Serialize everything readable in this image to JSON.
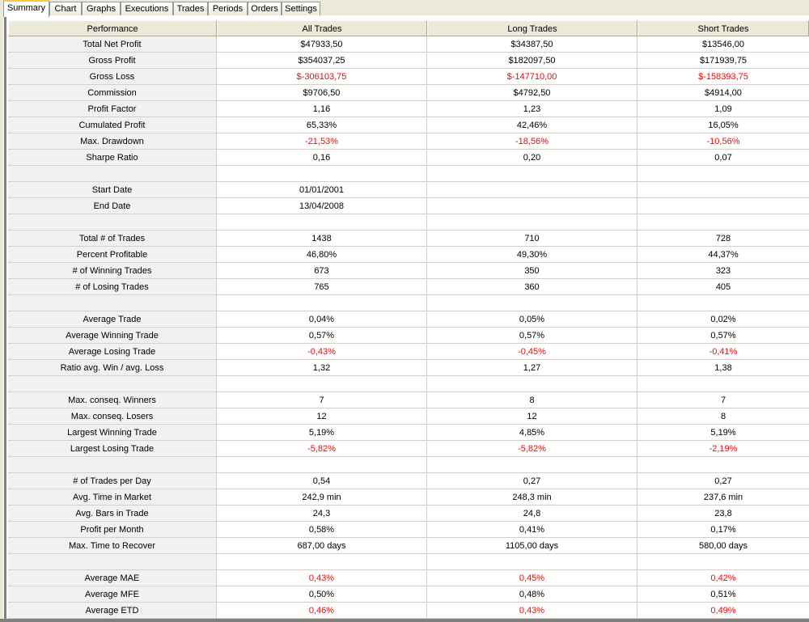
{
  "tabs": [
    "Summary",
    "Chart",
    "Graphs",
    "Executions",
    "Trades",
    "Periods",
    "Orders",
    "Settings"
  ],
  "active_tab": "Summary",
  "colors": {
    "negative": "#ff0000",
    "header_bg": "#ece9d8"
  },
  "table": {
    "headers": [
      "Performance",
      "All Trades",
      "Long Trades",
      "Short Trades"
    ],
    "rows": [
      {
        "label": "Total Net Profit",
        "values": [
          "$47933,50",
          "$34387,50",
          "$13546,00"
        ],
        "red": false
      },
      {
        "label": "Gross Profit",
        "values": [
          "$354037,25",
          "$182097,50",
          "$171939,75"
        ],
        "red": false
      },
      {
        "label": "Gross Loss",
        "values": [
          "$-306103,75",
          "$-147710,00",
          "$-158393,75"
        ],
        "red": true
      },
      {
        "label": "Commission",
        "values": [
          "$9706,50",
          "$4792,50",
          "$4914,00"
        ],
        "red": false
      },
      {
        "label": "Profit Factor",
        "values": [
          "1,16",
          "1,23",
          "1,09"
        ],
        "red": false
      },
      {
        "label": "Cumulated Profit",
        "values": [
          "65,33%",
          "42,46%",
          "16,05%"
        ],
        "red": false
      },
      {
        "label": "Max. Drawdown",
        "values": [
          "-21,53%",
          "-18,56%",
          "-10,56%"
        ],
        "red": true
      },
      {
        "label": "Sharpe Ratio",
        "values": [
          "0,16",
          "0,20",
          "0,07"
        ],
        "red": false
      },
      {
        "label": "",
        "values": [
          "",
          "",
          ""
        ],
        "red": false
      },
      {
        "label": "Start Date",
        "values": [
          "01/01/2001",
          "",
          ""
        ],
        "red": false
      },
      {
        "label": "End Date",
        "values": [
          "13/04/2008",
          "",
          ""
        ],
        "red": false
      },
      {
        "label": "",
        "values": [
          "",
          "",
          ""
        ],
        "red": false
      },
      {
        "label": "Total # of Trades",
        "values": [
          "1438",
          "710",
          "728"
        ],
        "red": false
      },
      {
        "label": "Percent Profitable",
        "values": [
          "46,80%",
          "49,30%",
          "44,37%"
        ],
        "red": false
      },
      {
        "label": "# of Winning Trades",
        "values": [
          "673",
          "350",
          "323"
        ],
        "red": false
      },
      {
        "label": "# of Losing Trades",
        "values": [
          "765",
          "360",
          "405"
        ],
        "red": false
      },
      {
        "label": "",
        "values": [
          "",
          "",
          ""
        ],
        "red": false
      },
      {
        "label": "Average Trade",
        "values": [
          "0,04%",
          "0,05%",
          "0,02%"
        ],
        "red": false
      },
      {
        "label": "Average Winning Trade",
        "values": [
          "0,57%",
          "0,57%",
          "0,57%"
        ],
        "red": false
      },
      {
        "label": "Average Losing Trade",
        "values": [
          "-0,43%",
          "-0,45%",
          "-0,41%"
        ],
        "red": true
      },
      {
        "label": "Ratio avg. Win / avg. Loss",
        "values": [
          "1,32",
          "1,27",
          "1,38"
        ],
        "red": false
      },
      {
        "label": "",
        "values": [
          "",
          "",
          ""
        ],
        "red": false
      },
      {
        "label": "Max. conseq. Winners",
        "values": [
          "7",
          "8",
          "7"
        ],
        "red": false
      },
      {
        "label": "Max. conseq. Losers",
        "values": [
          "12",
          "12",
          "8"
        ],
        "red": false
      },
      {
        "label": "Largest Winning Trade",
        "values": [
          "5,19%",
          "4,85%",
          "5,19%"
        ],
        "red": false
      },
      {
        "label": "Largest Losing Trade",
        "values": [
          "-5,82%",
          "-5,82%",
          "-2,19%"
        ],
        "red": true
      },
      {
        "label": "",
        "values": [
          "",
          "",
          ""
        ],
        "red": false
      },
      {
        "label": "# of Trades per Day",
        "values": [
          "0,54",
          "0,27",
          "0,27"
        ],
        "red": false
      },
      {
        "label": "Avg. Time in Market",
        "values": [
          "242,9 min",
          "248,3 min",
          "237,6 min"
        ],
        "red": false
      },
      {
        "label": "Avg. Bars in Trade",
        "values": [
          "24,3",
          "24,8",
          "23,8"
        ],
        "red": false
      },
      {
        "label": "Profit per Month",
        "values": [
          "0,58%",
          "0,41%",
          "0,17%"
        ],
        "red": false
      },
      {
        "label": "Max. Time to Recover",
        "values": [
          "687,00 days",
          "1105,00 days",
          "580,00 days"
        ],
        "red": false
      },
      {
        "label": "",
        "values": [
          "",
          "",
          ""
        ],
        "red": false
      },
      {
        "label": "Average MAE",
        "values": [
          "0,43%",
          "0,45%",
          "0,42%"
        ],
        "red": true
      },
      {
        "label": "Average MFE",
        "values": [
          "0,50%",
          "0,48%",
          "0,51%"
        ],
        "red": false
      },
      {
        "label": "Average ETD",
        "values": [
          "0,46%",
          "0,43%",
          "0,49%"
        ],
        "red": true
      }
    ]
  }
}
